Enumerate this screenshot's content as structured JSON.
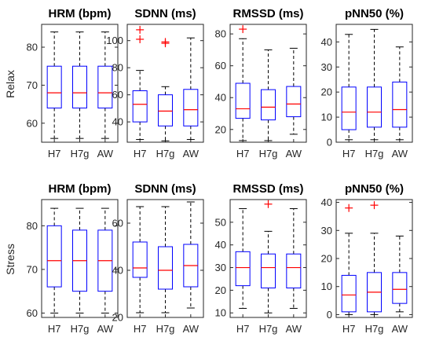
{
  "colors": {
    "box": "#0000ff",
    "median": "#ff0000",
    "outlier": "#ff0000",
    "whisker": "#000000"
  },
  "chart_data": [
    {
      "type": "box",
      "row": "Relax",
      "title": "HRM (bpm)",
      "categories": [
        "H7",
        "H7g",
        "AW"
      ],
      "ylim": [
        55,
        86
      ],
      "yticks": [
        "60",
        "70",
        "80"
      ],
      "boxes": [
        {
          "min": 56,
          "q1": 64,
          "median": 68,
          "q3": 75,
          "max": 84,
          "outliers": []
        },
        {
          "min": 56,
          "q1": 64,
          "median": 68,
          "q3": 75,
          "max": 84,
          "outliers": []
        },
        {
          "min": 56,
          "q1": 64,
          "median": 68,
          "q3": 75,
          "max": 84,
          "outliers": []
        }
      ]
    },
    {
      "type": "box",
      "row": "Relax",
      "title": "SDNN (ms)",
      "categories": [
        "H7",
        "H7g",
        "AW"
      ],
      "ylim": [
        25,
        112
      ],
      "yticks": [
        "40",
        "60",
        "80",
        "100"
      ],
      "boxes": [
        {
          "min": 27,
          "q1": 40,
          "median": 53,
          "q3": 63,
          "max": 78,
          "outliers": [
            101,
            108
          ]
        },
        {
          "min": 26,
          "q1": 37,
          "median": 48,
          "q3": 60,
          "max": 66,
          "outliers": [
            98,
            99
          ]
        },
        {
          "min": 27,
          "q1": 37,
          "median": 49,
          "q3": 64,
          "max": 102,
          "outliers": []
        }
      ]
    },
    {
      "type": "box",
      "row": "Relax",
      "title": "RMSSD (ms)",
      "categories": [
        "H7",
        "H7g",
        "AW"
      ],
      "ylim": [
        12,
        86
      ],
      "yticks": [
        "20",
        "40",
        "60",
        "80"
      ],
      "boxes": [
        {
          "min": 13,
          "q1": 27,
          "median": 33,
          "q3": 49,
          "max": 77,
          "outliers": [
            83
          ]
        },
        {
          "min": 13,
          "q1": 26,
          "median": 34,
          "q3": 45,
          "max": 70,
          "outliers": []
        },
        {
          "min": 17,
          "q1": 28,
          "median": 36,
          "q3": 47,
          "max": 71,
          "outliers": []
        }
      ]
    },
    {
      "type": "box",
      "row": "Relax",
      "title": "pNN50 (%)",
      "categories": [
        "H7",
        "H7g",
        "AW"
      ],
      "ylim": [
        0,
        47
      ],
      "yticks": [
        "0",
        "10",
        "20",
        "30",
        "40"
      ],
      "boxes": [
        {
          "min": 1,
          "q1": 5,
          "median": 12,
          "q3": 22,
          "max": 43,
          "outliers": []
        },
        {
          "min": 1,
          "q1": 6,
          "median": 12,
          "q3": 22,
          "max": 45,
          "outliers": []
        },
        {
          "min": 1,
          "q1": 6,
          "median": 13,
          "q3": 24,
          "max": 38,
          "outliers": []
        }
      ]
    },
    {
      "type": "box",
      "row": "Stress",
      "title": "HRM (bpm)",
      "categories": [
        "H7",
        "H7g",
        "AW"
      ],
      "ylim": [
        59,
        86
      ],
      "yticks": [
        "60",
        "70",
        "80"
      ],
      "boxes": [
        {
          "min": 60,
          "q1": 66,
          "median": 72,
          "q3": 80,
          "max": 84,
          "outliers": []
        },
        {
          "min": 60,
          "q1": 65,
          "median": 72,
          "q3": 79,
          "max": 84,
          "outliers": []
        },
        {
          "min": 60,
          "q1": 65,
          "median": 72,
          "q3": 79,
          "max": 84,
          "outliers": []
        }
      ]
    },
    {
      "type": "box",
      "row": "Stress",
      "title": "SDNN (ms)",
      "categories": [
        "H7",
        "H7g",
        "AW"
      ],
      "ylim": [
        20,
        70
      ],
      "yticks": [
        "20",
        "40",
        "60"
      ],
      "boxes": [
        {
          "min": 22,
          "q1": 37,
          "median": 41,
          "q3": 52,
          "max": 67,
          "outliers": []
        },
        {
          "min": 22,
          "q1": 32,
          "median": 40,
          "q3": 50,
          "max": 67,
          "outliers": []
        },
        {
          "min": 24,
          "q1": 33,
          "median": 42,
          "q3": 51,
          "max": 69,
          "outliers": []
        }
      ]
    },
    {
      "type": "box",
      "row": "Stress",
      "title": "RMSSD (ms)",
      "categories": [
        "H7",
        "H7g",
        "AW"
      ],
      "ylim": [
        8,
        60
      ],
      "yticks": [
        "10",
        "20",
        "30",
        "40",
        "50"
      ],
      "boxes": [
        {
          "min": 12,
          "q1": 22,
          "median": 30,
          "q3": 37,
          "max": 56,
          "outliers": []
        },
        {
          "min": 10,
          "q1": 21,
          "median": 30,
          "q3": 36,
          "max": 46,
          "outliers": [
            58
          ]
        },
        {
          "min": 12,
          "q1": 21,
          "median": 30,
          "q3": 36,
          "max": 56,
          "outliers": []
        }
      ]
    },
    {
      "type": "box",
      "row": "Stress",
      "title": "pNN50 (%)",
      "categories": [
        "H7",
        "H7g",
        "AW"
      ],
      "ylim": [
        -1,
        41
      ],
      "yticks": [
        "0",
        "10",
        "20",
        "30",
        "40"
      ],
      "boxes": [
        {
          "min": 0,
          "q1": 1,
          "median": 7,
          "q3": 14,
          "max": 29,
          "outliers": [
            38
          ]
        },
        {
          "min": 0,
          "q1": 1,
          "median": 8,
          "q3": 15,
          "max": 29,
          "outliers": [
            39
          ]
        },
        {
          "min": 1,
          "q1": 4,
          "median": 9,
          "q3": 15,
          "max": 28,
          "outliers": []
        }
      ]
    }
  ],
  "row_labels": [
    "Relax",
    "Stress"
  ]
}
